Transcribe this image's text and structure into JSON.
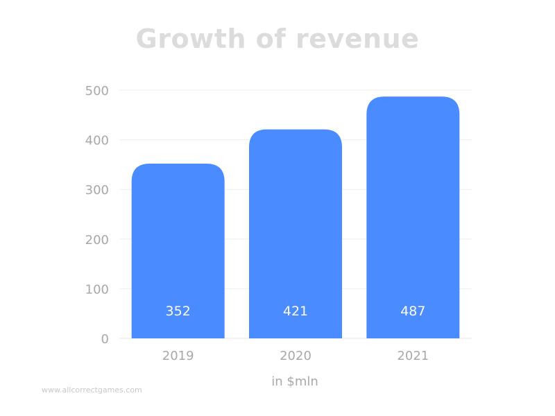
{
  "chart_data": {
    "type": "bar",
    "title": "Growth of revenue",
    "categories": [
      "2019",
      "2020",
      "2021"
    ],
    "values": [
      352,
      421,
      487
    ],
    "data_labels": [
      "352",
      "421",
      "487"
    ],
    "yticks": [
      "0",
      "100",
      "200",
      "300",
      "400",
      "500"
    ],
    "ylim": [
      0,
      500
    ],
    "xlabel": "in $mln",
    "ylabel": "",
    "grid": true,
    "legend": "none",
    "bar_color": "#4a8cff",
    "label_color": "#ffffff",
    "axis_text_color": "#a8a8a8",
    "grid_color": "#eeeeee"
  },
  "watermark": "www.allcorrectgames.com"
}
